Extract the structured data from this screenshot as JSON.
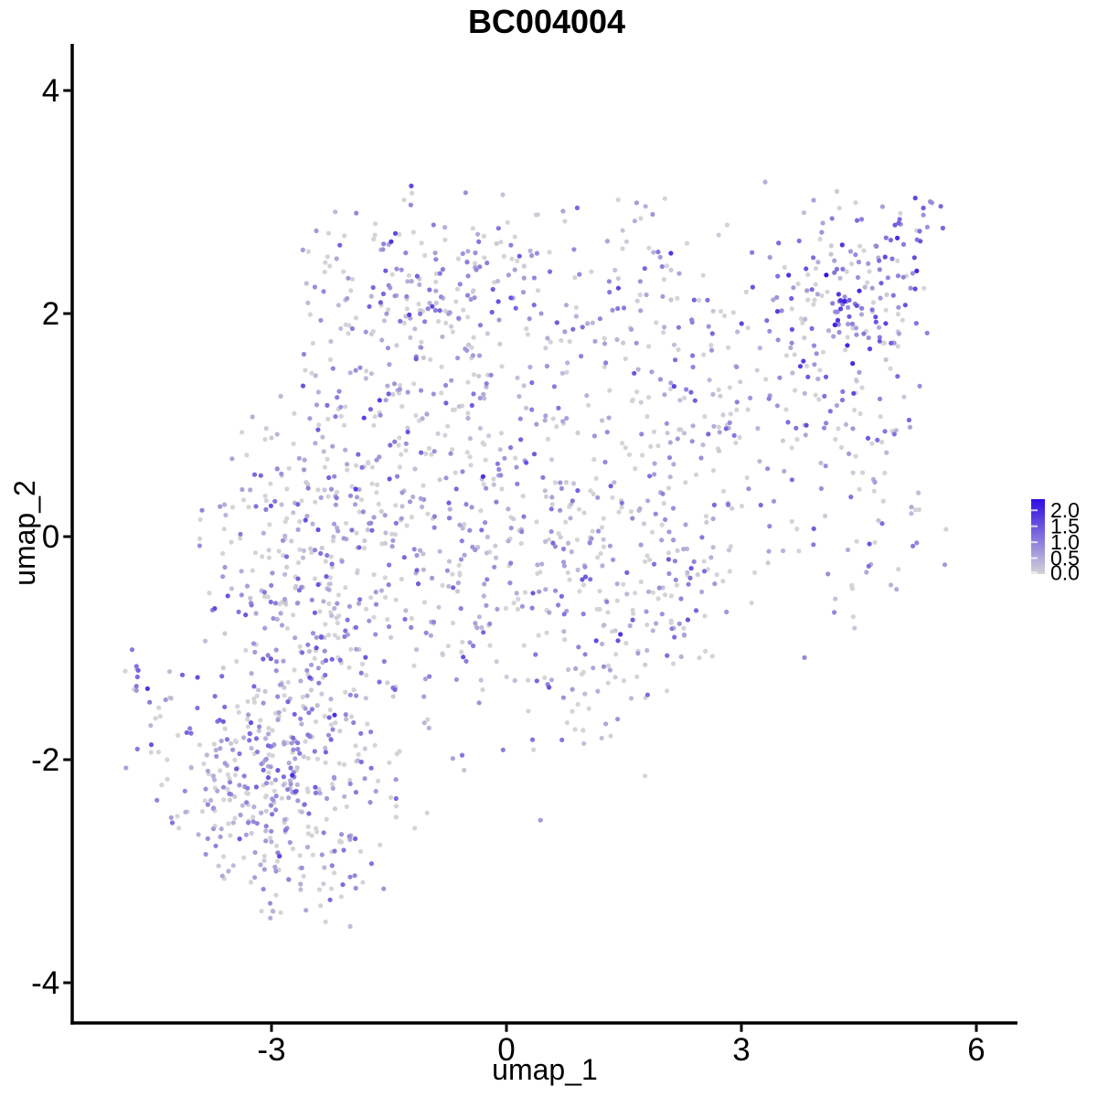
{
  "chart_data": {
    "type": "scatter",
    "title": "BC004004",
    "xlabel": "umap_1",
    "ylabel": "umap_2",
    "xlim": [
      -5.5,
      6.5
    ],
    "ylim": [
      -4.35,
      4.4
    ],
    "x_ticks": [
      -3,
      0,
      3,
      6
    ],
    "y_ticks": [
      4,
      2,
      0,
      -2,
      -4
    ],
    "grid": false,
    "axis_color": "#000000",
    "legend": {
      "position": "right",
      "labels": [
        "2.0",
        "1.5",
        "1.0",
        "0.5",
        "0.0"
      ],
      "breaks": [
        2.0,
        1.5,
        1.0,
        0.5,
        0.0
      ],
      "vmax": 2.35,
      "low_color": "#D5D3D7",
      "high_color": "#2E0CE3",
      "tick_color": "#FFFFFF"
    },
    "points": {
      "radius": 2.6,
      "seed": 7,
      "value_model": "p0 chance of 0 (grey) else abs(normal(vm,vs)) clamped to [0.1,2.3]"
    },
    "clusters": [
      {
        "name": "far-left-islet",
        "n": 12,
        "cx": -4.66,
        "cy": -1.2,
        "sx": 0.13,
        "sy": 0.14,
        "corr": 0,
        "p0": 0.3,
        "vm": 0.85,
        "vs": 0.45
      },
      {
        "name": "bottom-left-lobe",
        "n": 420,
        "cx": -2.9,
        "cy": -2.2,
        "sx": 0.78,
        "sy": 0.62,
        "corr": 0,
        "p0": 0.34,
        "vm": 0.72,
        "vs": 0.42
      },
      {
        "name": "left-column",
        "n": 290,
        "cx": -2.65,
        "cy": -0.25,
        "sx": 0.6,
        "sy": 0.85,
        "corr": 0,
        "p0": 0.34,
        "vm": 0.75,
        "vs": 0.45
      },
      {
        "name": "central-mass",
        "n": 360,
        "cx": -0.95,
        "cy": 0.5,
        "sx": 1.0,
        "sy": 1.0,
        "corr": 0,
        "p0": 0.36,
        "vm": 0.7,
        "vs": 0.45
      },
      {
        "name": "top-arc",
        "n": 175,
        "cx": -1.05,
        "cy": 2.3,
        "sx": 0.95,
        "sy": 0.42,
        "corr": 0,
        "p0": 0.34,
        "vm": 0.75,
        "vs": 0.45
      },
      {
        "name": "center-right",
        "n": 160,
        "cx": 0.75,
        "cy": -0.2,
        "sx": 0.85,
        "sy": 0.9,
        "corr": 0,
        "p0": 0.38,
        "vm": 0.68,
        "vs": 0.42
      },
      {
        "name": "lower-right-arm",
        "n": 75,
        "cx": 1.65,
        "cy": -0.95,
        "sx": 0.6,
        "sy": 0.5,
        "corr": 0.45,
        "p0": 0.36,
        "vm": 0.7,
        "vs": 0.45
      },
      {
        "name": "right-band",
        "n": 210,
        "cx": 2.75,
        "cy": 0.85,
        "sx": 0.95,
        "sy": 0.8,
        "corr": 0.5,
        "p0": 0.36,
        "vm": 0.72,
        "vs": 0.48
      },
      {
        "name": "right-edge",
        "n": 55,
        "cx": 4.55,
        "cy": 0.3,
        "sx": 0.45,
        "sy": 0.6,
        "corr": 0,
        "p0": 0.4,
        "vm": 0.7,
        "vs": 0.45
      },
      {
        "name": "top-right-cluster",
        "n": 205,
        "cx": 4.45,
        "cy": 2.1,
        "sx": 0.62,
        "sy": 0.5,
        "corr": 0.3,
        "p0": 0.22,
        "vm": 1.05,
        "vs": 0.55
      },
      {
        "name": "top-bridge",
        "n": 95,
        "cx": 1.7,
        "cy": 2.15,
        "sx": 0.85,
        "sy": 0.5,
        "corr": 0,
        "p0": 0.38,
        "vm": 0.7,
        "vs": 0.45
      }
    ],
    "exclusions": {
      "ymin": -3.62,
      "ymax": 3.18,
      "xmin": -4.95,
      "xmax": 5.62,
      "below_lines": [
        {
          "a": 0.62,
          "b": -3.75
        },
        {
          "a": -0.75,
          "b": -5.78
        }
      ],
      "above_line_when_x_lt": {
        "xlt": -2.6,
        "a": 1.44,
        "b": 5.89
      }
    }
  }
}
